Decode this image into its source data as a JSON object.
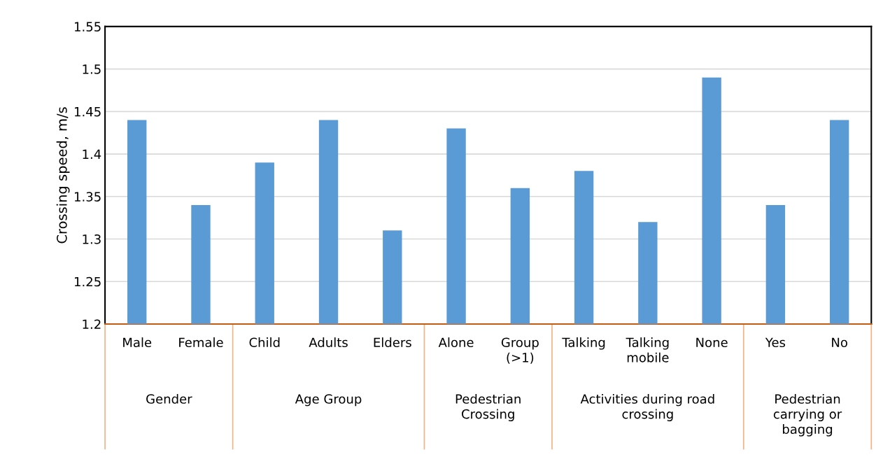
{
  "chart_data": {
    "type": "bar",
    "ylabel": "Crossing speed, m/s",
    "categories": [
      "Male",
      "Female",
      "Child",
      "Adults",
      "Elders",
      "Alone",
      "Group (>1)",
      "Talking",
      "Talking mobile",
      "None",
      "Yes",
      "No"
    ],
    "values": [
      1.44,
      1.34,
      1.39,
      1.44,
      1.31,
      1.43,
      1.36,
      1.38,
      1.32,
      1.49,
      1.34,
      1.44
    ],
    "color": "#5b9bd5",
    "ylim": [
      1.2,
      1.55
    ],
    "yticks": [
      1.2,
      1.25,
      1.3,
      1.35,
      1.4,
      1.45,
      1.5,
      1.55
    ],
    "grid": "y",
    "annotations": [
      "Gender",
      "Age Group",
      "Pedestrian Crossing",
      "Activities during road crossing",
      "Pedestrian carrying or bagging"
    ]
  }
}
